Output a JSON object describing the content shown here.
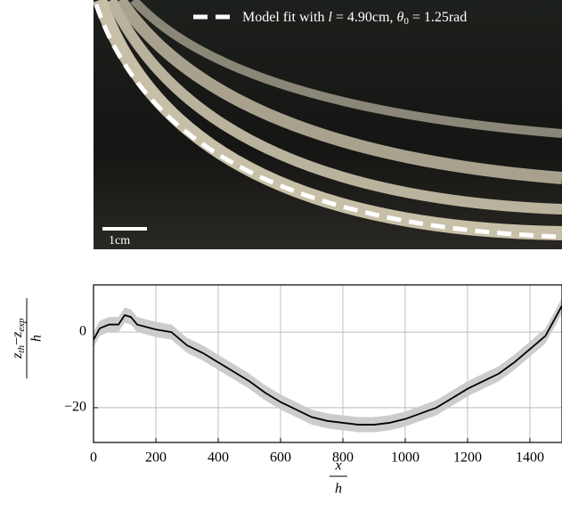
{
  "photo": {
    "legend": {
      "text": "Model fit with ",
      "var": "l",
      "mid": " = 4.90cm, ",
      "theta": "θ",
      "sub": "0",
      "rest": " = 1.25rad"
    },
    "scale_bar": "1cm"
  },
  "chart_data": {
    "type": "line",
    "xlabel": {
      "numerator": "x",
      "denominator": "h"
    },
    "ylabel": {
      "numerator": [
        "z",
        "th",
        "−",
        "z",
        "exp"
      ],
      "denominator": "h"
    },
    "x": [
      0,
      20,
      50,
      80,
      100,
      120,
      140,
      200,
      250,
      300,
      350,
      400,
      450,
      500,
      550,
      600,
      650,
      700,
      750,
      800,
      850,
      900,
      950,
      1000,
      1050,
      1100,
      1150,
      1200,
      1250,
      1300,
      1350,
      1400,
      1450,
      1503
    ],
    "series": [
      {
        "color": "#000000",
        "band_color": "#cccccc",
        "error": 2,
        "values": [
          -2,
          1,
          2,
          2,
          4.5,
          4,
          2,
          0.7,
          0,
          -3.5,
          -5.5,
          -8,
          -10.5,
          -13,
          -16,
          -18.5,
          -20.5,
          -22.5,
          -23.5,
          -24,
          -24.5,
          -24.5,
          -24,
          -23,
          -21.5,
          -20,
          -17.5,
          -15,
          -13,
          -11,
          -8,
          -4.5,
          -1,
          7
        ]
      }
    ],
    "xlim": [
      0,
      1503
    ],
    "ylim": [
      -29.2,
      12.5
    ],
    "xticks": [
      0,
      200,
      400,
      600,
      800,
      1000,
      1200,
      1400
    ],
    "yticks": [
      0,
      {
        "value": -20,
        "label": "−20"
      }
    ],
    "grid": true
  }
}
